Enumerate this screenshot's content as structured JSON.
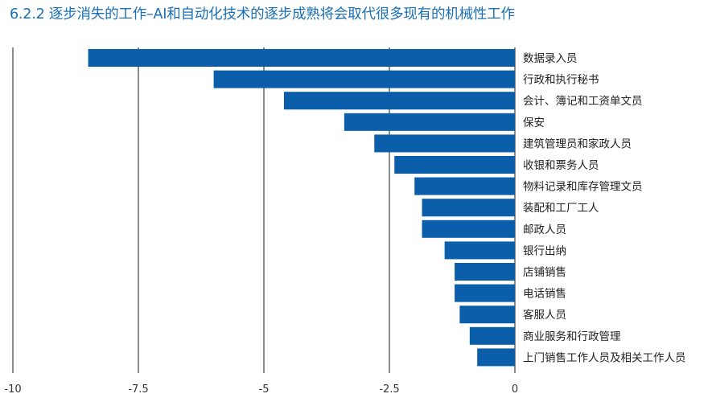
{
  "title": "6.2.2 逐步消失的工作–AI和自动化技术的逐步成熟将会取代很多现有的机械性工作",
  "colors": {
    "bar": "#0a5eaa",
    "title": "#1a6fb5",
    "grid": "#1a1a1a"
  },
  "chart_data": {
    "type": "bar",
    "orientation": "horizontal",
    "title": "6.2.2 逐步消失的工作–AI和自动化技术的逐步成熟将会取代很多现有的机械性工作",
    "categories": [
      "数据录入员",
      "行政和执行秘书",
      "会计、簿记和工资单文员",
      "保安",
      "建筑管理员和家政人员",
      "收银和票务人员",
      "物料记录和库存管理文员",
      "装配和工厂工人",
      "邮政人员",
      "银行出纳",
      "店铺销售",
      "电话销售",
      "客服人员",
      "商业服务和行政管理",
      "上门销售工作人员及相关工作人员"
    ],
    "values": [
      -8.5,
      -6.0,
      -4.6,
      -3.4,
      -2.8,
      -2.4,
      -2.0,
      -1.85,
      -1.85,
      -1.4,
      -1.2,
      -1.2,
      -1.1,
      -0.9,
      -0.75
    ],
    "xlim": [
      -10,
      0
    ],
    "xticks": [
      -10,
      -7.5,
      -5,
      -2.5,
      0
    ],
    "xtick_labels": [
      "-10",
      "-7.5",
      "-5",
      "-2.5",
      "0"
    ],
    "grid": "vertical lines at ticks",
    "legend": "none"
  }
}
